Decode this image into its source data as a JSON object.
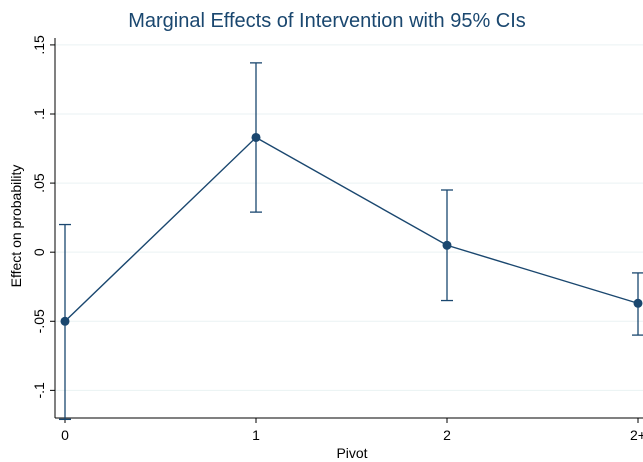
{
  "chart_data": {
    "type": "line",
    "title": "Marginal Effects of Intervention with 95% CIs",
    "xlabel": "Pivot",
    "ylabel": "Effect on probability",
    "categories": [
      "0",
      "1",
      "2",
      "2+"
    ],
    "x": [
      0,
      1,
      2,
      3
    ],
    "x_tick_labels": [
      "0",
      "1",
      "2",
      "2+"
    ],
    "series": [
      {
        "values": [
          -0.05,
          0.083,
          0.005,
          -0.037
        ],
        "ci_lower": [
          -0.121,
          0.029,
          -0.035,
          -0.06
        ],
        "ci_upper": [
          0.02,
          0.137,
          0.045,
          -0.015
        ]
      }
    ],
    "ylim": [
      -0.12,
      0.155
    ],
    "y_ticks": [
      -0.1,
      -0.05,
      0,
      0.05,
      0.1,
      0.15
    ],
    "y_tick_labels": [
      "-.1",
      "-.05",
      "0",
      ".05",
      ".1",
      ".15"
    ],
    "grid": true,
    "legend": "none",
    "colors": {
      "series": "#1a476f",
      "title": "#1a476f",
      "grid": "#eaf2f3"
    }
  }
}
